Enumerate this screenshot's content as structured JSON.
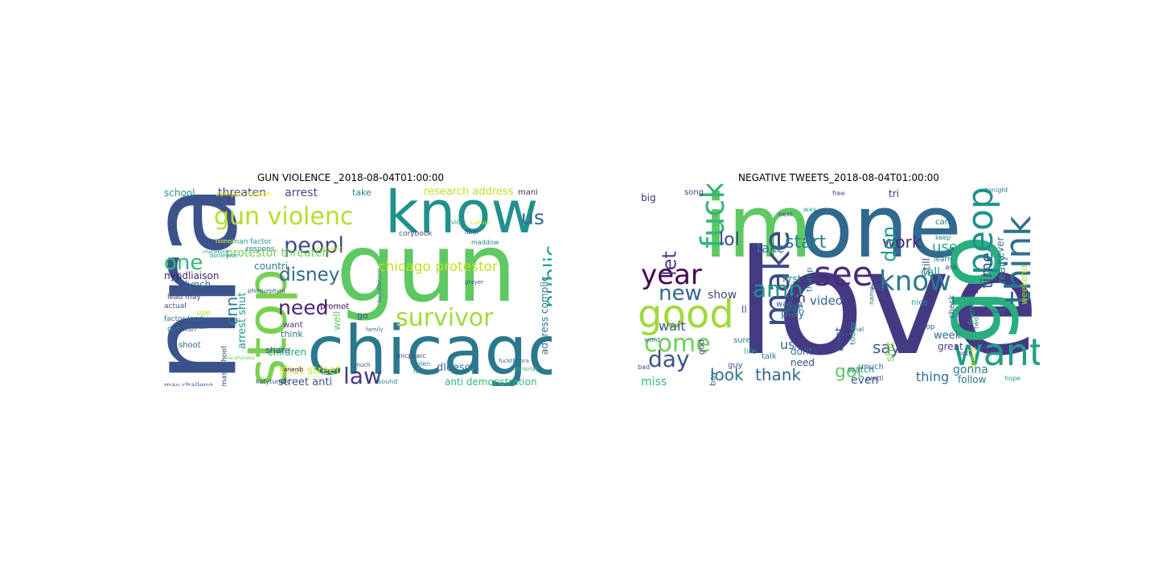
{
  "panels": [
    {
      "title": "GUN VIOLENCE _2018-08-04T01:00:00",
      "words": [
        {
          "text": "nra",
          "color": "#3b528b"
        },
        {
          "text": "gun",
          "color": "#5ec962"
        },
        {
          "text": "chicago",
          "color": "#2a788e"
        },
        {
          "text": "know",
          "color": "#21918c"
        },
        {
          "text": "stop",
          "color": "#7ad151"
        },
        {
          "text": "gun violenc",
          "color": "#b5de2b"
        },
        {
          "text": "survivor",
          "color": "#a0da39"
        },
        {
          "text": "peopl",
          "color": "#3e4989"
        },
        {
          "text": "disney",
          "color": "#31688e"
        },
        {
          "text": "law",
          "color": "#443983"
        },
        {
          "text": "public",
          "color": "#1f9e89"
        },
        {
          "text": "need",
          "color": "#482878"
        },
        {
          "text": "one",
          "color": "#35b779"
        },
        {
          "text": "us",
          "color": "#31688e"
        },
        {
          "text": "cnn",
          "color": "#26828e"
        },
        {
          "text": "chicago protestor",
          "color": "#c2df23"
        },
        {
          "text": "protestor threaten",
          "color": "#6ece58"
        },
        {
          "text": "threaten",
          "color": "#3e4a89"
        },
        {
          "text": "arrest",
          "color": "#404688"
        },
        {
          "text": "arrest shut",
          "color": "#1f988b"
        },
        {
          "text": "research address",
          "color": "#bddf26"
        },
        {
          "text": "address complic",
          "color": "#2c728e"
        },
        {
          "text": "shut street",
          "color": "#dae319"
        },
        {
          "text": "street anti",
          "color": "#3b528b"
        },
        {
          "text": "anti demonstration",
          "color": "#35b779"
        },
        {
          "text": "dloesch",
          "color": "#2c718e"
        },
        {
          "text": "school",
          "color": "#1e9b8a"
        },
        {
          "text": "take",
          "color": "#27808e"
        },
        {
          "text": "mani",
          "color": "#472d7b"
        },
        {
          "text": "countri",
          "color": "#2a788e"
        },
        {
          "text": "lynch",
          "color": "#31688e"
        },
        {
          "text": "nypdliaison",
          "color": "#481f70"
        },
        {
          "text": "children",
          "color": "#22a884"
        },
        {
          "text": "share",
          "color": "#3b528b"
        },
        {
          "text": "think",
          "color": "#2d708e"
        },
        {
          "text": "want",
          "color": "#46337f"
        },
        {
          "text": "well",
          "color": "#5ec962"
        },
        {
          "text": "promot",
          "color": "#440154"
        },
        {
          "text": "go",
          "color": "#39568c"
        },
        {
          "text": "use",
          "color": "#b8de29"
        },
        {
          "text": "call",
          "color": "#3b528b"
        },
        {
          "text": "die",
          "color": "#2a788e"
        },
        {
          "text": "shoot",
          "color": "#31688e"
        },
        {
          "text": "mass shoot",
          "color": "#3e4989"
        },
        {
          "text": "may challeng",
          "color": "#39568c"
        },
        {
          "text": "lead may",
          "color": "#433e85"
        },
        {
          "text": "factor lead",
          "color": "#2c728e"
        },
        {
          "text": "actual",
          "color": "#3b528b"
        },
        {
          "text": "violen",
          "color": "#26828e"
        },
        {
          "text": "human factor",
          "color": "#1f988b"
        },
        {
          "text": "complic human",
          "color": "#fde725"
        },
        {
          "text": "respons",
          "color": "#2a788e"
        },
        {
          "text": "prevent",
          "color": "#c8e020"
        },
        {
          "text": "corybook",
          "color": "#3b528b"
        },
        {
          "text": "maddow",
          "color": "#27808e"
        },
        {
          "text": "liber",
          "color": "#3e4a89"
        },
        {
          "text": "viol",
          "color": "#1f9e89"
        },
        {
          "text": "culture",
          "color": "#d5e21a"
        },
        {
          "text": "much",
          "color": "#3b528b"
        },
        {
          "text": "fuckthenra",
          "color": "#2c718e"
        },
        {
          "text": "chrisinay",
          "color": "#35b779"
        },
        {
          "text": "micpearc",
          "color": "#433e85"
        },
        {
          "text": "katyturnbc",
          "color": "#3b528b"
        },
        {
          "text": "sound",
          "color": "#26828e"
        },
        {
          "text": "tsonea",
          "color": "#fde725"
        },
        {
          "text": "family",
          "color": "#2a788e"
        },
        {
          "text": "kamalaharri",
          "color": "#31688e"
        },
        {
          "text": "philmurphynj",
          "color": "#3e4989"
        },
        {
          "text": "donlemon",
          "color": "#21918c"
        },
        {
          "text": "militari",
          "color": "#3b528b"
        },
        {
          "text": "arienib",
          "color": "#440154"
        },
        {
          "text": "prayer",
          "color": "#3b528b"
        },
        {
          "text": "fbi",
          "color": "#2a788e"
        },
        {
          "text": "charlekoch",
          "color": "#1f988b"
        },
        {
          "text": "peacefulness",
          "color": "#6ece58"
        }
      ]
    },
    {
      "title": "NEGATIVE TWEETS_2018-08-04T01:00:00",
      "words": [
        {
          "text": "love",
          "color": "#443983"
        },
        {
          "text": "im",
          "color": "#5ec962"
        },
        {
          "text": "one",
          "color": "#31688e"
        },
        {
          "text": "go",
          "color": "#29af7f"
        },
        {
          "text": "know",
          "color": "#2a788e"
        },
        {
          "text": "see",
          "color": "#472d7b"
        },
        {
          "text": "good",
          "color": "#a0da39"
        },
        {
          "text": "make",
          "color": "#3e4989"
        },
        {
          "text": "want",
          "color": "#1f9e89"
        },
        {
          "text": "peopl",
          "color": "#21918c"
        },
        {
          "text": "think",
          "color": "#2c728e"
        },
        {
          "text": "fuck",
          "color": "#35b779"
        },
        {
          "text": "new",
          "color": "#31688e"
        },
        {
          "text": "year",
          "color": "#440154"
        },
        {
          "text": "day",
          "color": "#3b528b"
        },
        {
          "text": "come",
          "color": "#6ece58"
        },
        {
          "text": "amp",
          "color": "#1f988b"
        },
        {
          "text": "lol",
          "color": "#3e4989"
        },
        {
          "text": "start",
          "color": "#26828e"
        },
        {
          "text": "work",
          "color": "#482878"
        },
        {
          "text": "don",
          "color": "#1f9e89"
        },
        {
          "text": "take",
          "color": "#2a788e"
        },
        {
          "text": "time",
          "color": "#3b528b"
        },
        {
          "text": "say",
          "color": "#39568c"
        },
        {
          "text": "look",
          "color": "#2c718e"
        },
        {
          "text": "thank",
          "color": "#31688e"
        },
        {
          "text": "got",
          "color": "#5ec962"
        },
        {
          "text": "call",
          "color": "#1f988b"
        },
        {
          "text": "use",
          "color": "#22a884"
        },
        {
          "text": "let",
          "color": "#433e85"
        },
        {
          "text": "oh",
          "color": "#482878"
        },
        {
          "text": "wait",
          "color": "#3b528b"
        },
        {
          "text": "play",
          "color": "#2a788e"
        },
        {
          "text": "show",
          "color": "#3e4a89"
        },
        {
          "text": "video",
          "color": "#31688e"
        },
        {
          "text": "gonna",
          "color": "#27808e"
        },
        {
          "text": "thing",
          "color": "#2c728e"
        },
        {
          "text": "shit",
          "color": "#7ad151"
        },
        {
          "text": "even",
          "color": "#3b528b"
        },
        {
          "text": "miss",
          "color": "#35b779"
        },
        {
          "text": "us",
          "color": "#31688e"
        },
        {
          "text": "live",
          "color": "#2a788e"
        },
        {
          "text": "big",
          "color": "#472d7b"
        },
        {
          "text": "first",
          "color": "#26828e"
        },
        {
          "text": "really",
          "color": "#21918c"
        },
        {
          "text": "still",
          "color": "#3e4989"
        },
        {
          "text": "never",
          "color": "#2c718e"
        },
        {
          "text": "weekend",
          "color": "#b5de2b"
        },
        {
          "text": "friend",
          "color": "#1f9e89"
        },
        {
          "text": "check",
          "color": "#3b528b"
        },
        {
          "text": "follow",
          "color": "#2a788e"
        },
        {
          "text": "back",
          "color": "#c2df23"
        },
        {
          "text": "week",
          "color": "#31688e"
        },
        {
          "text": "great",
          "color": "#433e85"
        },
        {
          "text": "nice",
          "color": "#1f988b"
        },
        {
          "text": "best",
          "color": "#3b528b"
        },
        {
          "text": "watch",
          "color": "#26828e"
        },
        {
          "text": "need",
          "color": "#3e4a89"
        },
        {
          "text": "dont",
          "color": "#2c728e"
        },
        {
          "text": "talk",
          "color": "#2a788e"
        },
        {
          "text": "guy",
          "color": "#3b528b"
        },
        {
          "text": "life",
          "color": "#35b779"
        },
        {
          "text": "boy",
          "color": "#31688e"
        },
        {
          "text": "god",
          "color": "#433e85"
        },
        {
          "text": "much",
          "color": "#2c718e"
        },
        {
          "text": "post",
          "color": "#3b528b"
        },
        {
          "text": "today",
          "color": "#1f9e89"
        },
        {
          "text": "sure",
          "color": "#2a788e"
        },
        {
          "text": "wanna",
          "color": "#31688e"
        },
        {
          "text": "song",
          "color": "#3e4989"
        },
        {
          "text": "learn",
          "color": "#2c728e"
        },
        {
          "text": "ask",
          "color": "#3b528b"
        },
        {
          "text": "keep",
          "color": "#26828e"
        },
        {
          "text": "win",
          "color": "#472d7b"
        },
        {
          "text": "stop",
          "color": "#3b528b"
        },
        {
          "text": "trump",
          "color": "#2a788e"
        },
        {
          "text": "hope",
          "color": "#1f988b"
        },
        {
          "text": "two",
          "color": "#31688e"
        },
        {
          "text": "noth",
          "color": "#3e4a89"
        },
        {
          "text": "pretti",
          "color": "#3b528b"
        },
        {
          "text": "final",
          "color": "#2c718e"
        },
        {
          "text": "word",
          "color": "#26828e"
        },
        {
          "text": "bad",
          "color": "#3b528b"
        },
        {
          "text": "tonight",
          "color": "#2a788e"
        },
        {
          "text": "said",
          "color": "#31688e"
        },
        {
          "text": "next",
          "color": "#3e4989"
        },
        {
          "text": "way",
          "color": "#1f9e89"
        },
        {
          "text": "free",
          "color": "#3b528b"
        },
        {
          "text": "cant",
          "color": "#2c728e"
        },
        {
          "text": "tri",
          "color": "#472d7b"
        },
        {
          "text": "name",
          "color": "#31688e"
        },
        {
          "text": "ll",
          "color": "#3b528b"
        }
      ]
    }
  ]
}
